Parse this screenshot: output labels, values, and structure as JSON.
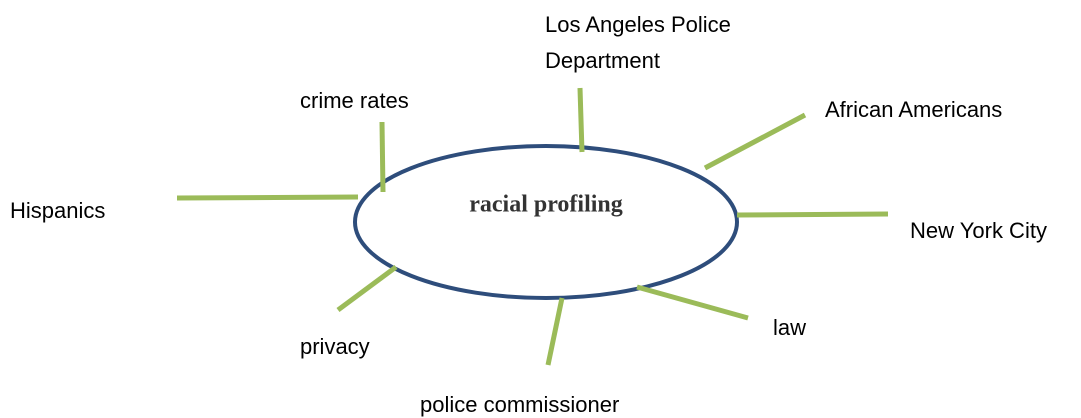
{
  "center": {
    "label": "racial profiling"
  },
  "nodes": [
    {
      "label": "Los Angeles Police Department"
    },
    {
      "label": "crime rates"
    },
    {
      "label": "African Americans"
    },
    {
      "label": "Hispanics"
    },
    {
      "label": "New York City"
    },
    {
      "label": "privacy"
    },
    {
      "label": "law"
    },
    {
      "label": "police commissioner"
    }
  ]
}
